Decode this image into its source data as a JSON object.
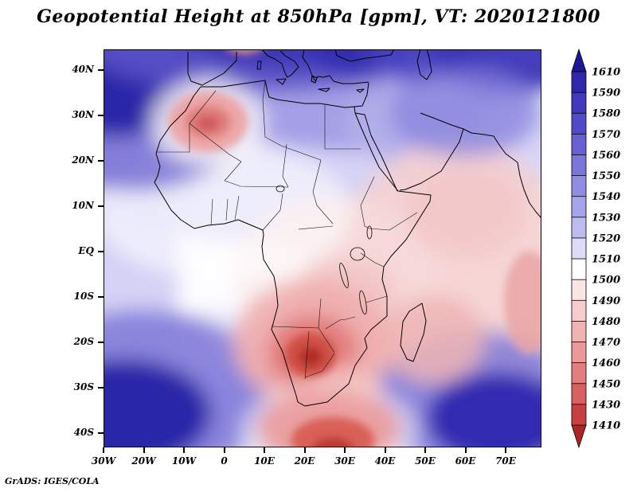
{
  "title": "Geopotential Height at 850hPa [gpm], VT: 2020121800",
  "footer": "GrADS: IGES/COLA",
  "chart_data": {
    "type": "heatmap",
    "title": "Geopotential Height at 850hPa [gpm], VT: 2020121800",
    "variable": "Geopotential Height",
    "level": "850hPa",
    "units": "gpm",
    "valid_time": "2020121800",
    "projection": "latlon",
    "lon_range": [
      -30,
      79
    ],
    "lat_range": [
      -44,
      44
    ],
    "x_tick_labels": [
      "30W",
      "20W",
      "10W",
      "0",
      "10E",
      "20E",
      "30E",
      "40E",
      "50E",
      "60E",
      "70E"
    ],
    "y_tick_labels": [
      "40N",
      "30N",
      "20N",
      "10N",
      "EQ",
      "10S",
      "20S",
      "30S",
      "40S"
    ],
    "colorbar": {
      "labels": [
        "1610",
        "1590",
        "1580",
        "1570",
        "1560",
        "1550",
        "1540",
        "1530",
        "1520",
        "1510",
        "1500",
        "1490",
        "1480",
        "1470",
        "1460",
        "1450",
        "1430",
        "1410"
      ],
      "colors": [
        "#1d1795",
        "#2e27aa",
        "#4039bf",
        "#524bc9",
        "#6660d2",
        "#7b76da",
        "#918de2",
        "#a7a4ea",
        "#bdbbf0",
        "#dcdcf8",
        "#ffffff",
        "#fbe4e4",
        "#f6cccc",
        "#f0b3b3",
        "#ea9999",
        "#e37e7e",
        "#d96060",
        "#c84040",
        "#ad2626"
      ]
    },
    "features": [
      {
        "name": "high-north-atlantic",
        "lon": -28,
        "lat": 38,
        "value_gpm": 1610
      },
      {
        "name": "high-mediterranean-band",
        "lon": 15,
        "lat": 44,
        "value_gpm": 1590
      },
      {
        "name": "high-northeast-caspian",
        "lon": 70,
        "lat": 44,
        "value_gpm": 1580
      },
      {
        "name": "low-algeria",
        "lon": -4,
        "lat": 28,
        "value_gpm": 1490
      },
      {
        "name": "neutral-equatorial-band",
        "lon": 10,
        "lat": 5,
        "value_gpm": 1515
      },
      {
        "name": "low-southern-africa",
        "lon": 22,
        "lat": -23,
        "value_gpm": 1420
      },
      {
        "name": "low-south-of-africa",
        "lon": 27,
        "lat": -42,
        "value_gpm": 1450
      },
      {
        "name": "high-south-atlantic",
        "lon": -25,
        "lat": -36,
        "value_gpm": 1610
      },
      {
        "name": "high-south-indian",
        "lon": 68,
        "lat": -37,
        "value_gpm": 1600
      }
    ],
    "field_blobs": [
      [
        227,
        136,
        280,
        110,
        "#ccc9f4",
        0.8,
        1
      ],
      [
        328,
        68,
        200,
        60,
        "#9d98e4",
        0.85,
        1
      ],
      [
        404,
        97,
        100,
        50,
        "#b5b1ea",
        0.8,
        1
      ],
      [
        520,
        120,
        60,
        70,
        "#c9c6f2",
        0.7,
        1
      ],
      [
        15,
        278,
        80,
        140,
        "#cac8f3",
        0.8,
        1
      ],
      [
        444,
        284,
        150,
        170,
        "#f5d0d0",
        0.9,
        1
      ],
      [
        293,
        284,
        130,
        100,
        "#f8dbdb",
        0.85,
        1
      ],
      [
        151,
        403,
        110,
        75,
        "#c6c3f1",
        0.7,
        1
      ],
      [
        227,
        460,
        210,
        60,
        "#b7b4ec",
        0.65,
        1
      ],
      [
        151,
        205,
        160,
        85,
        "#ffffff",
        0.6,
        1
      ],
      [
        192,
        318,
        90,
        75,
        "#ffffff",
        0.5,
        1
      ],
      [
        40,
        63,
        150,
        115,
        "#6f69d2",
        0.8,
        1
      ],
      [
        15,
        30,
        100,
        80,
        "#2c25a8",
        1,
        1
      ],
      [
        192,
        -8,
        220,
        62,
        "#5a53c8",
        0.9,
        1
      ],
      [
        227,
        -20,
        130,
        45,
        "#3c35b5",
        0.95,
        1
      ],
      [
        323,
        -2,
        65,
        40,
        "#352eb2",
        0.95,
        1
      ],
      [
        404,
        4,
        70,
        38,
        "#4b44c1",
        0.9,
        1
      ],
      [
        515,
        -6,
        110,
        62,
        "#3b34b8",
        0.95,
        1
      ],
      [
        454,
        80,
        95,
        55,
        "#8a84dd",
        0.75,
        1
      ],
      [
        50,
        432,
        160,
        105,
        "#7f79d8",
        0.85,
        1
      ],
      [
        25,
        457,
        110,
        68,
        "#2c25a8",
        1,
        1
      ],
      [
        470,
        443,
        130,
        90,
        "#817bd9",
        0.85,
        1
      ],
      [
        495,
        463,
        90,
        58,
        "#332cb0",
        1,
        1
      ],
      [
        131,
        91,
        72,
        55,
        "#fdf7f7",
        0.8,
        1
      ],
      [
        414,
        364,
        65,
        55,
        "#efb5b5",
        0.85,
        1
      ],
      [
        454,
        205,
        75,
        55,
        "#f3c6c6",
        0.8,
        1
      ],
      [
        303,
        307,
        65,
        45,
        "#f3c3c3",
        0.8,
        1
      ],
      [
        263,
        369,
        100,
        80,
        "#efafaf",
        0.95,
        1
      ],
      [
        263,
        381,
        58,
        48,
        "#e27c7c",
        1,
        1
      ],
      [
        303,
        426,
        48,
        32,
        "#f2bcbc",
        0.8,
        1
      ],
      [
        283,
        480,
        110,
        62,
        "#ffffff",
        0.6,
        1
      ],
      [
        283,
        477,
        90,
        52,
        "#ea9c9c",
        0.95,
        1
      ],
      [
        131,
        91,
        50,
        38,
        "#eda4a4",
        0.95,
        2
      ],
      [
        131,
        91,
        29,
        21,
        "#e07d7d",
        1,
        2
      ],
      [
        131,
        93,
        14,
        10,
        "#d05b5b",
        1,
        2
      ],
      [
        177,
        -9,
        26,
        15,
        "#e59090",
        0.9,
        2
      ],
      [
        535,
        318,
        32,
        65,
        "#eaa5a5",
        0.85,
        2
      ],
      [
        260,
        384,
        32,
        27,
        "#cf4f44",
        1,
        2
      ],
      [
        260,
        386,
        15,
        12,
        "#b12f28",
        1,
        2
      ],
      [
        288,
        491,
        52,
        29,
        "#d96057",
        1,
        2
      ],
      [
        288,
        502,
        26,
        15,
        "#bd3a32",
        1,
        2
      ]
    ]
  }
}
